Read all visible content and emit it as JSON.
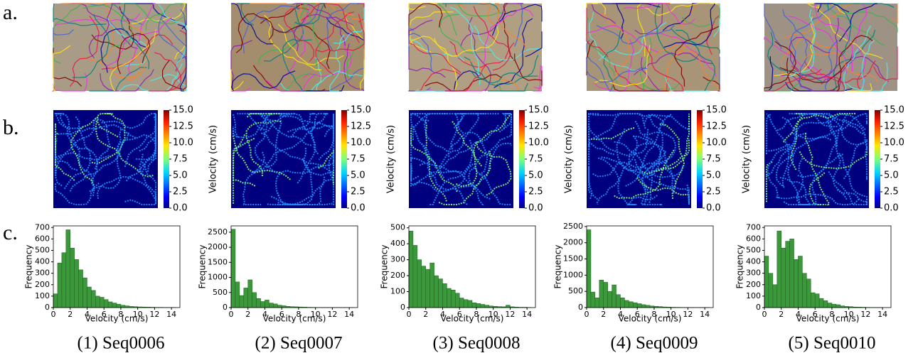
{
  "row_labels": [
    "a.",
    "b.",
    "c."
  ],
  "captions": [
    "(1) Seq0006",
    "(2) Seq0007",
    "(3) Seq0008",
    "(4) Seq0009",
    "(5) Seq0010"
  ],
  "colorbar": {
    "label": "Velocity (cm/s)",
    "lim": [
      0,
      15
    ],
    "ticks": [
      {
        "value": 0,
        "label": "0.0"
      },
      {
        "value": 2.5,
        "label": "2.5"
      },
      {
        "value": 5,
        "label": "5.0"
      },
      {
        "value": 7.5,
        "label": "7.5"
      },
      {
        "value": 10,
        "label": "10.0"
      },
      {
        "value": 12.5,
        "label": "12.5"
      },
      {
        "value": 15,
        "label": "15.0"
      }
    ]
  },
  "chart_data": [
    {
      "type": "histogram",
      "xlabel": "Velocity (cm/s)",
      "ylabel": "Frequency",
      "color": "#3a9a3a",
      "bins": [
        0,
        0.5,
        1,
        1.5,
        2,
        2.5,
        3,
        3.5,
        4,
        4.5,
        5,
        5.5,
        6,
        6.5,
        7,
        7.5,
        8,
        8.5,
        9,
        9.5,
        10,
        10.5,
        11,
        11.5,
        12,
        12.5,
        13,
        13.5,
        14,
        14.5,
        15
      ],
      "values": [
        120,
        390,
        480,
        680,
        520,
        420,
        330,
        260,
        180,
        150,
        100,
        90,
        70,
        50,
        40,
        30,
        20,
        15,
        10,
        8,
        6,
        5,
        4,
        3,
        2,
        2,
        1,
        1,
        1,
        0
      ],
      "xlim": [
        0,
        15
      ],
      "xticks": [
        0,
        2,
        4,
        6,
        8,
        10,
        12,
        14
      ],
      "ylim": [
        0,
        714
      ],
      "yticks": [
        0,
        100,
        200,
        300,
        400,
        500,
        600,
        700
      ]
    },
    {
      "type": "histogram",
      "xlabel": "Velocity (cm/s)",
      "ylabel": "Frequency",
      "color": "#3a9a3a",
      "bins": [
        0,
        0.5,
        1,
        1.5,
        2,
        2.5,
        3,
        3.5,
        4,
        4.5,
        5,
        5.5,
        6,
        6.5,
        7,
        7.5,
        8,
        8.5,
        9,
        9.5,
        10,
        10.5,
        11,
        11.5,
        12,
        12.5,
        13,
        13.5,
        14,
        14.5,
        15
      ],
      "values": [
        2600,
        850,
        400,
        650,
        920,
        500,
        300,
        200,
        250,
        150,
        120,
        80,
        60,
        40,
        30,
        25,
        20,
        15,
        10,
        8,
        6,
        5,
        4,
        3,
        2,
        2,
        1,
        1,
        1,
        0
      ],
      "xlim": [
        0,
        15
      ],
      "xticks": [
        0,
        2,
        4,
        6,
        8,
        10,
        12,
        14
      ],
      "ylim": [
        0,
        2710
      ],
      "yticks": [
        0,
        500,
        1000,
        1500,
        2000,
        2500
      ]
    },
    {
      "type": "histogram",
      "xlabel": "Velocity (cm/s)",
      "ylabel": "Frequency",
      "color": "#3a9a3a",
      "bins": [
        0,
        0.5,
        1,
        1.5,
        2,
        2.5,
        3,
        3.5,
        4,
        4.5,
        5,
        5.5,
        6,
        6.5,
        7,
        7.5,
        8,
        8.5,
        9,
        9.5,
        10,
        10.5,
        11,
        11.5,
        12,
        12.5,
        13,
        13.5,
        14,
        14.5,
        15
      ],
      "values": [
        480,
        390,
        300,
        260,
        240,
        280,
        200,
        180,
        150,
        120,
        110,
        90,
        60,
        50,
        45,
        30,
        25,
        20,
        15,
        10,
        8,
        6,
        5,
        15,
        5,
        3,
        2,
        2,
        1,
        0
      ],
      "xlim": [
        0,
        15
      ],
      "xticks": [
        0,
        2,
        4,
        6,
        8,
        10,
        12,
        14
      ],
      "ylim": [
        0,
        512
      ],
      "yticks": [
        0,
        100,
        200,
        300,
        400,
        500
      ]
    },
    {
      "type": "histogram",
      "xlabel": "Velocity (cm/s)",
      "ylabel": "Frequency",
      "color": "#3a9a3a",
      "bins": [
        0,
        0.5,
        1,
        1.5,
        2,
        2.5,
        3,
        3.5,
        4,
        4.5,
        5,
        5.5,
        6,
        6.5,
        7,
        7.5,
        8,
        8.5,
        9,
        9.5,
        10,
        10.5,
        11,
        11.5,
        12,
        12.5,
        13,
        13.5,
        14,
        14.5,
        15
      ],
      "values": [
        2400,
        480,
        300,
        850,
        780,
        500,
        700,
        400,
        300,
        220,
        180,
        150,
        120,
        90,
        70,
        50,
        40,
        30,
        20,
        15,
        10,
        8,
        6,
        5,
        4,
        3,
        2,
        1,
        1,
        0
      ],
      "xlim": [
        0,
        15
      ],
      "xticks": [
        0,
        2,
        4,
        6,
        8,
        10,
        12,
        14
      ],
      "ylim": [
        0,
        2520
      ],
      "yticks": [
        0,
        500,
        1000,
        1500,
        2000,
        2500
      ]
    },
    {
      "type": "histogram",
      "xlabel": "Velocity (cm/s)",
      "ylabel": "Frequency",
      "color": "#3a9a3a",
      "bins": [
        0,
        0.5,
        1,
        1.5,
        2,
        2.5,
        3,
        3.5,
        4,
        4.5,
        5,
        5.5,
        6,
        6.5,
        7,
        7.5,
        8,
        8.5,
        9,
        9.5,
        10,
        10.5,
        11,
        11.5,
        12,
        12.5,
        13,
        13.5,
        14,
        14.5,
        15
      ],
      "values": [
        450,
        300,
        200,
        670,
        520,
        580,
        600,
        420,
        450,
        300,
        250,
        130,
        120,
        80,
        60,
        40,
        30,
        25,
        15,
        10,
        8,
        5,
        4,
        3,
        2,
        1,
        1,
        1,
        0,
        0
      ],
      "xlim": [
        0,
        15
      ],
      "xticks": [
        0,
        2,
        4,
        6,
        8,
        10,
        12,
        14
      ],
      "ylim": [
        0,
        714
      ],
      "yticks": [
        0,
        100,
        200,
        300,
        400,
        500,
        600,
        700
      ]
    }
  ]
}
